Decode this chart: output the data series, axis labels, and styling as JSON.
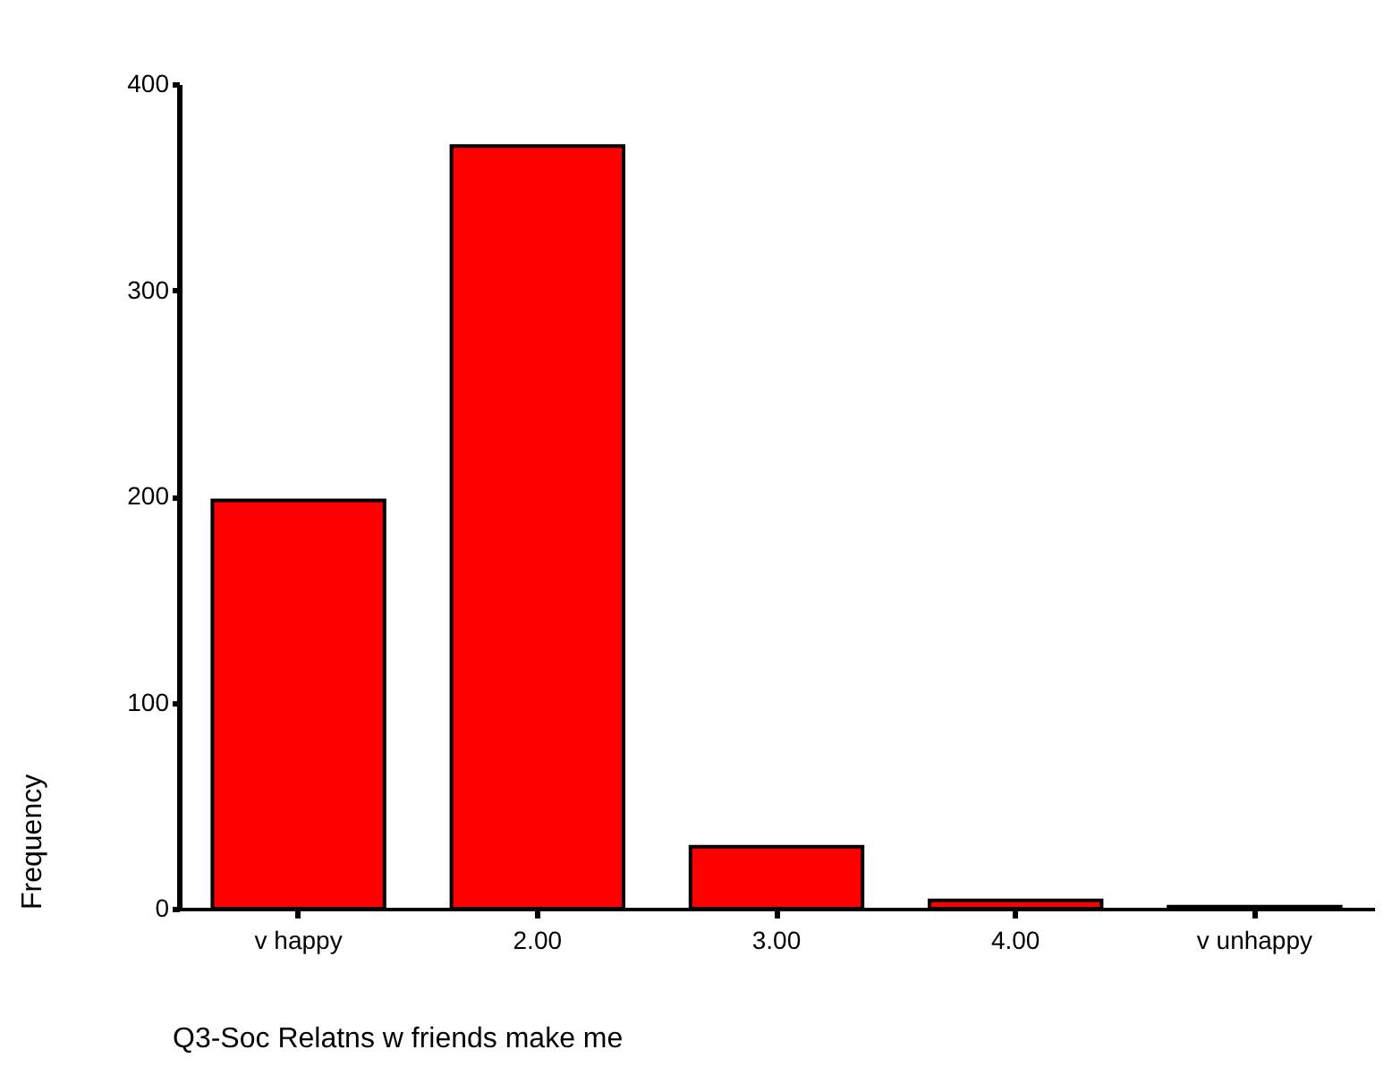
{
  "chart_data": {
    "type": "bar",
    "xlabel": "Q3-Soc Relatns w friends make me",
    "ylabel": "Frequency",
    "categories": [
      "v happy",
      "2.00",
      "3.00",
      "4.00",
      "v unhappy"
    ],
    "values": [
      198,
      370,
      30,
      4,
      1
    ],
    "color": "#ff0000",
    "ylim": [
      0,
      400
    ],
    "yticks": [
      0,
      100,
      200,
      300,
      400
    ],
    "grid": false
  }
}
